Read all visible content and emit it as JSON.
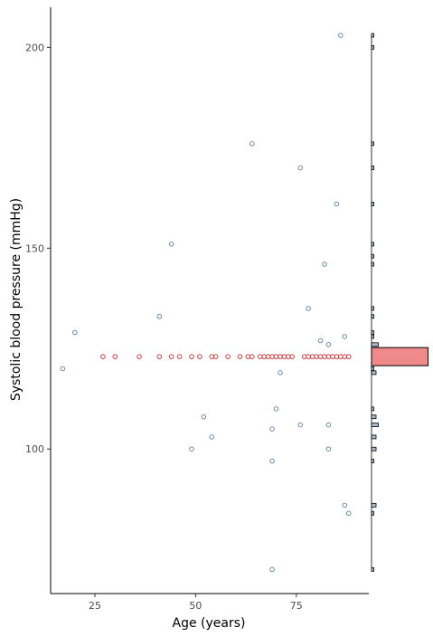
{
  "chart_data": {
    "type": "scatter",
    "xlabel": "Age (years)",
    "ylabel": "Systolic blood pressure (mmHg)",
    "xlim": [
      14,
      93
    ],
    "ylim": [
      64,
      210
    ],
    "xticks": [
      25,
      50,
      75
    ],
    "yticks": [
      100,
      150,
      200
    ],
    "grid": false,
    "legend": "none",
    "colors": {
      "observed_point": "#5b7fa0",
      "imputed_point": "#d0212a",
      "observed_bar": "#a9bfd0",
      "imputed_bar": "#f08a8a",
      "axis": "#000000"
    },
    "observed_points": [
      {
        "x": 17,
        "y": 120
      },
      {
        "x": 20,
        "y": 129
      },
      {
        "x": 41,
        "y": 133
      },
      {
        "x": 44,
        "y": 151
      },
      {
        "x": 49,
        "y": 100
      },
      {
        "x": 52,
        "y": 108
      },
      {
        "x": 54,
        "y": 103
      },
      {
        "x": 64,
        "y": 176
      },
      {
        "x": 69,
        "y": 97
      },
      {
        "x": 69,
        "y": 105
      },
      {
        "x": 69,
        "y": 70
      },
      {
        "x": 70,
        "y": 110
      },
      {
        "x": 71,
        "y": 119
      },
      {
        "x": 76,
        "y": 106
      },
      {
        "x": 76,
        "y": 170
      },
      {
        "x": 78,
        "y": 135
      },
      {
        "x": 81,
        "y": 127
      },
      {
        "x": 82,
        "y": 146
      },
      {
        "x": 83,
        "y": 126
      },
      {
        "x": 83,
        "y": 106
      },
      {
        "x": 83,
        "y": 100
      },
      {
        "x": 85,
        "y": 161
      },
      {
        "x": 86,
        "y": 203
      },
      {
        "x": 87,
        "y": 128
      },
      {
        "x": 87,
        "y": 86
      },
      {
        "x": 88,
        "y": 84
      }
    ],
    "imputed_points": {
      "y": 123,
      "x": [
        27,
        30,
        36,
        41,
        44,
        46,
        49,
        51,
        54,
        55,
        58,
        61,
        63,
        64,
        66,
        67,
        68,
        69,
        70,
        71,
        72,
        73,
        74,
        77,
        78,
        79,
        80,
        81,
        82,
        83,
        84,
        85,
        86,
        87,
        88
      ]
    },
    "marginal_histogram": {
      "observed": [
        {
          "y": 70,
          "count": 1
        },
        {
          "y": 84,
          "count": 1
        },
        {
          "y": 86,
          "count": 2
        },
        {
          "y": 97,
          "count": 1
        },
        {
          "y": 100,
          "count": 2
        },
        {
          "y": 103,
          "count": 2
        },
        {
          "y": 106,
          "count": 3
        },
        {
          "y": 108,
          "count": 2
        },
        {
          "y": 110,
          "count": 1
        },
        {
          "y": 119,
          "count": 2
        },
        {
          "y": 120,
          "count": 1
        },
        {
          "y": 126,
          "count": 3
        },
        {
          "y": 128,
          "count": 1
        },
        {
          "y": 129,
          "count": 1
        },
        {
          "y": 133,
          "count": 1
        },
        {
          "y": 135,
          "count": 1
        },
        {
          "y": 146,
          "count": 1
        },
        {
          "y": 148,
          "count": 1
        },
        {
          "y": 151,
          "count": 1
        },
        {
          "y": 161,
          "count": 1
        },
        {
          "y": 170,
          "count": 1
        },
        {
          "y": 176,
          "count": 1
        },
        {
          "y": 200,
          "count": 1
        },
        {
          "y": 203,
          "count": 1
        }
      ],
      "imputed": [
        {
          "y": 123,
          "count": 25
        }
      ]
    }
  }
}
